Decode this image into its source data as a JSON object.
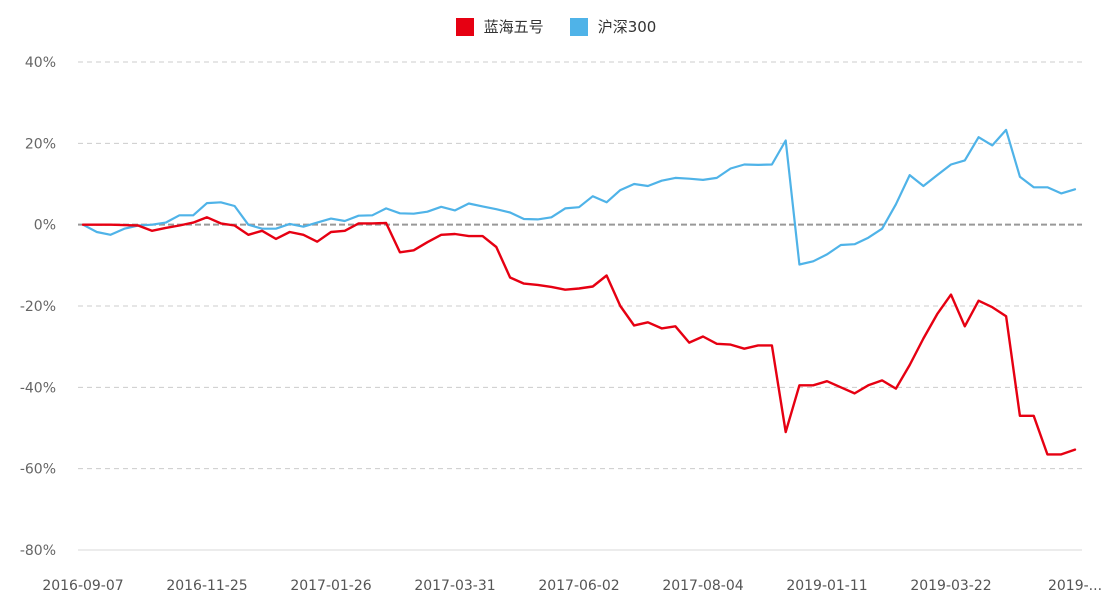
{
  "chart_data": {
    "type": "line",
    "title": "",
    "xlabel": "",
    "ylabel": "",
    "ylim": [
      -80,
      40
    ],
    "yticks": [
      "-80%",
      "-60%",
      "-40%",
      "-20%",
      "0%",
      "20%",
      "40%"
    ],
    "yticks_values": [
      -80,
      -60,
      -40,
      -20,
      0,
      20,
      40
    ],
    "x_tick_labels": [
      "2016-09-07",
      "2016-11-25",
      "2017-01-26",
      "2017-03-31",
      "2017-06-02",
      "2017-08-04",
      "2019-01-11",
      "2019-03-22",
      "2019-..."
    ],
    "x_tick_index": [
      0,
      9,
      18,
      27,
      36,
      45,
      54,
      63,
      72
    ],
    "grid": true,
    "legend_position": "top-center",
    "series": [
      {
        "name": "蓝海五号",
        "color": "#e60012",
        "values": [
          0,
          0,
          0,
          -0.1,
          -0.2,
          -1.5,
          -0.8,
          -0.2,
          0.5,
          1.8,
          0.3,
          -0.2,
          -2.5,
          -1.5,
          -3.5,
          -1.8,
          -2.5,
          -4.2,
          -1.8,
          -1.5,
          0.3,
          0.3,
          0.4,
          -6.8,
          -6.3,
          -4.3,
          -2.5,
          -2.3,
          -2.8,
          -2.8,
          -5.5,
          -13,
          -14.5,
          -14.8,
          -15.3,
          -16,
          -15.7,
          -15.2,
          -12.5,
          -20,
          -24.8,
          -24,
          -25.5,
          -25,
          -29,
          -27.5,
          -29.3,
          -29.5,
          -30.5,
          -29.7,
          -29.7,
          -51,
          -39.5,
          -39.5,
          -38.5,
          -40,
          -41.5,
          -39.5,
          -38.3,
          -40.3,
          -34.5,
          -28,
          -22,
          -17.2,
          -25,
          -18.7,
          -20.3,
          -22.5,
          -47,
          -47,
          -56.5,
          -56.5,
          -55.3
        ]
      },
      {
        "name": "沪深300",
        "color": "#4fb3e8",
        "values": [
          0,
          -1.8,
          -2.5,
          -1,
          -0.2,
          0,
          0.5,
          2.3,
          2.3,
          5.3,
          5.5,
          4.6,
          0,
          -1,
          -1,
          0.2,
          -0.5,
          0.5,
          1.5,
          0.9,
          2.2,
          2.3,
          4,
          2.8,
          2.7,
          3.2,
          4.4,
          3.5,
          5.2,
          4.5,
          3.8,
          3,
          1.4,
          1.3,
          1.8,
          4,
          4.3,
          7,
          5.5,
          8.5,
          10,
          9.5,
          10.8,
          11.5,
          11.3,
          11,
          11.5,
          13.8,
          14.8,
          14.7,
          14.8,
          20.7,
          -9.8,
          -9,
          -7.3,
          -5,
          -4.8,
          -3.2,
          -1,
          5,
          12.2,
          9.5,
          12.2,
          14.8,
          15.8,
          21.5,
          19.5,
          23.3,
          11.8,
          9.2,
          9.2,
          7.7,
          8.7
        ]
      }
    ]
  }
}
